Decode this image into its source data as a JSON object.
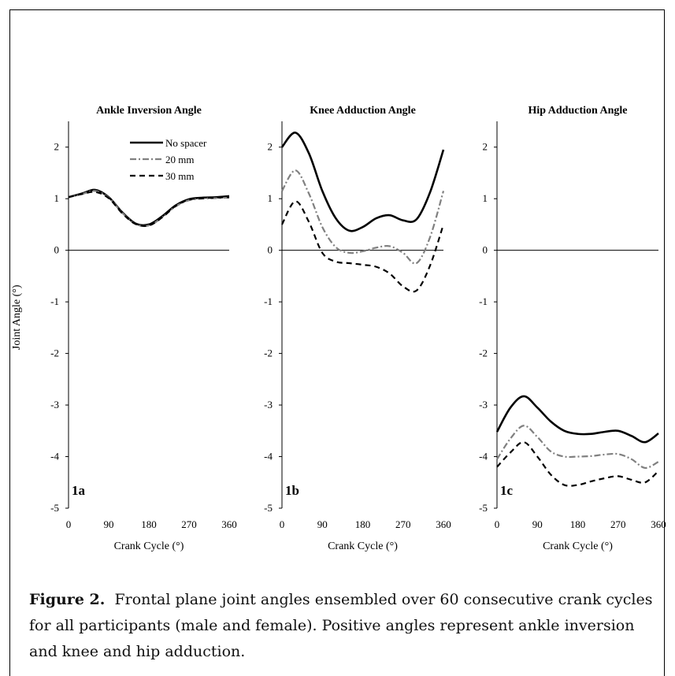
{
  "chart_data": [
    {
      "type": "line",
      "panel_label": "1a",
      "title": "Ankle Inversion Angle",
      "xlabel": "Crank Cycle (°)",
      "ylabel": "Joint Angle (°)",
      "xlim": [
        0,
        360
      ],
      "ylim": [
        -5,
        2.5
      ],
      "xticks": [
        "0",
        "90",
        "180",
        "270",
        "360"
      ],
      "yticks": [
        "2",
        "1",
        "0",
        "-1",
        "-2",
        "-3",
        "-4",
        "-5"
      ],
      "legend_position": "top-right",
      "x": [
        0,
        30,
        60,
        90,
        120,
        150,
        180,
        210,
        240,
        270,
        300,
        330,
        360
      ],
      "series": [
        {
          "name": "No spacer",
          "style": "solid",
          "color": "#000000",
          "values": [
            1.03,
            1.1,
            1.17,
            1.03,
            0.74,
            0.52,
            0.5,
            0.66,
            0.87,
            0.99,
            1.02,
            1.03,
            1.05
          ]
        },
        {
          "name": "20 mm",
          "style": "dashdot",
          "color": "#808080",
          "values": [
            1.03,
            1.09,
            1.15,
            1.02,
            0.73,
            0.51,
            0.48,
            0.64,
            0.85,
            0.97,
            1.0,
            1.01,
            1.02
          ]
        },
        {
          "name": "30 mm",
          "style": "dashed",
          "color": "#000000",
          "values": [
            1.03,
            1.09,
            1.13,
            1.01,
            0.72,
            0.51,
            0.48,
            0.64,
            0.86,
            0.98,
            1.01,
            1.02,
            1.03
          ]
        }
      ]
    },
    {
      "type": "line",
      "panel_label": "1b",
      "title": "Knee Adduction Angle",
      "xlabel": "Crank Cycle (°)",
      "xlim": [
        0,
        360
      ],
      "ylim": [
        -5,
        2.5
      ],
      "xticks": [
        "0",
        "90",
        "180",
        "270",
        "360"
      ],
      "yticks": [
        "2",
        "1",
        "0",
        "-1",
        "-2",
        "-3",
        "-4",
        "-5"
      ],
      "x": [
        0,
        30,
        60,
        90,
        120,
        150,
        180,
        210,
        240,
        270,
        300,
        330,
        360
      ],
      "series": [
        {
          "name": "No spacer",
          "style": "solid",
          "color": "#000000",
          "values": [
            2.0,
            2.28,
            1.88,
            1.15,
            0.62,
            0.38,
            0.45,
            0.62,
            0.68,
            0.58,
            0.6,
            1.12,
            1.95
          ]
        },
        {
          "name": "20 mm",
          "style": "dashdot",
          "color": "#808080",
          "values": [
            1.15,
            1.55,
            1.1,
            0.45,
            0.06,
            -0.05,
            -0.02,
            0.05,
            0.08,
            -0.05,
            -0.25,
            0.25,
            1.15
          ]
        },
        {
          "name": "30 mm",
          "style": "dashed",
          "color": "#000000",
          "values": [
            0.5,
            0.95,
            0.55,
            -0.05,
            -0.22,
            -0.25,
            -0.28,
            -0.32,
            -0.45,
            -0.7,
            -0.78,
            -0.3,
            0.5
          ]
        }
      ]
    },
    {
      "type": "line",
      "panel_label": "1c",
      "title": "Hip Adduction Angle",
      "xlabel": "Crank Cycle (°)",
      "xlim": [
        0,
        360
      ],
      "ylim": [
        -5,
        2.5
      ],
      "xticks": [
        "0",
        "90",
        "180",
        "270",
        "360"
      ],
      "yticks": [
        "2",
        "1",
        "0",
        "-1",
        "-2",
        "-3",
        "-4",
        "-5"
      ],
      "x": [
        0,
        30,
        60,
        90,
        120,
        150,
        180,
        210,
        240,
        270,
        300,
        330,
        360
      ],
      "series": [
        {
          "name": "No spacer",
          "style": "solid",
          "color": "#000000",
          "values": [
            -3.52,
            -3.05,
            -2.83,
            -3.05,
            -3.32,
            -3.5,
            -3.56,
            -3.56,
            -3.52,
            -3.5,
            -3.6,
            -3.72,
            -3.55
          ]
        },
        {
          "name": "20 mm",
          "style": "dashdot",
          "color": "#808080",
          "values": [
            -4.05,
            -3.65,
            -3.4,
            -3.62,
            -3.9,
            -4.0,
            -4.0,
            -3.99,
            -3.96,
            -3.95,
            -4.05,
            -4.22,
            -4.1
          ]
        },
        {
          "name": "30 mm",
          "style": "dashed",
          "color": "#000000",
          "values": [
            -4.2,
            -3.92,
            -3.72,
            -4.0,
            -4.35,
            -4.55,
            -4.55,
            -4.48,
            -4.42,
            -4.38,
            -4.45,
            -4.5,
            -4.28
          ]
        }
      ]
    }
  ],
  "caption": {
    "label": "Figure 2.",
    "text": "Frontal plane joint angles ensembled over 60 consecutive crank cycles for all participants (male and female). Positive angles represent ankle inversion and knee and hip adduction."
  }
}
